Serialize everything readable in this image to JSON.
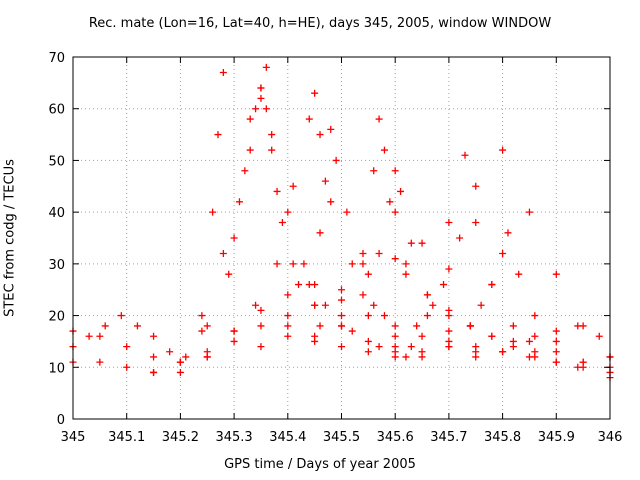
{
  "chart_data": {
    "type": "scatter",
    "title": "Rec. mate (Lon=16, Lat=40, h=HE), days 345, 2005, window WINDOW",
    "xlabel": "GPS time / Days of year 2005",
    "ylabel": "STEC from codg / TECUs",
    "xlim": [
      345,
      346
    ],
    "ylim": [
      0,
      70
    ],
    "x_ticks": [
      "345",
      "345.1",
      "345.2",
      "345.3",
      "345.4",
      "345.5",
      "345.6",
      "345.7",
      "345.8",
      "345.9",
      "346"
    ],
    "y_ticks": [
      "0",
      "10",
      "20",
      "30",
      "40",
      "50",
      "60",
      "70"
    ],
    "grid": true,
    "marker": "plus",
    "color": "#ff0000",
    "series": [
      {
        "x": [
          345.0,
          345.05,
          345.1,
          345.15,
          345.2,
          345.25,
          345.3,
          345.35,
          345.4,
          345.45,
          345.5,
          345.55,
          345.6,
          345.65,
          345.7,
          345.75,
          345.8,
          345.85,
          345.9,
          345.95,
          346.0
        ],
        "y": [
          11,
          11,
          10,
          9,
          9,
          12,
          15,
          18,
          20,
          22,
          25,
          28,
          31,
          34,
          38,
          45,
          52,
          40,
          28,
          18,
          12
        ]
      },
      {
        "x": [
          345.0,
          345.05,
          345.1,
          345.15,
          345.2,
          345.25,
          345.3,
          345.35,
          345.4,
          345.45,
          345.5,
          345.55,
          345.6,
          345.65,
          345.7,
          345.75,
          345.8,
          345.85,
          345.9,
          345.95,
          346.0
        ],
        "y": [
          17,
          16,
          14,
          12,
          11,
          13,
          17,
          21,
          24,
          26,
          23,
          20,
          18,
          16,
          15,
          14,
          13,
          12,
          11,
          10,
          9
        ]
      },
      {
        "x": [
          345.0,
          345.03,
          345.06,
          345.09,
          345.12,
          345.15,
          345.18,
          345.21,
          345.24,
          345.26,
          345.27,
          345.28
        ],
        "y": [
          14,
          16,
          18,
          20,
          18,
          16,
          13,
          12,
          20,
          40,
          55,
          67
        ]
      },
      {
        "x": [
          345.2,
          345.24,
          345.28,
          345.32,
          345.34,
          345.35,
          345.36,
          345.38,
          345.41,
          345.45,
          345.5,
          345.55,
          345.6
        ],
        "y": [
          11,
          17,
          32,
          48,
          60,
          64,
          60,
          44,
          30,
          22,
          18,
          15,
          13
        ]
      },
      {
        "x": [
          345.15,
          345.2,
          345.25,
          345.3,
          345.33,
          345.35,
          345.36,
          345.37,
          345.39,
          345.42,
          345.46,
          345.5
        ],
        "y": [
          9,
          11,
          18,
          35,
          52,
          62,
          68,
          55,
          38,
          26,
          18,
          14
        ]
      },
      {
        "x": [
          345.25,
          345.29,
          345.31,
          345.33,
          345.35,
          345.37,
          345.4,
          345.43,
          345.47,
          345.52,
          345.57,
          345.62
        ],
        "y": [
          12,
          28,
          42,
          58,
          64,
          52,
          40,
          30,
          22,
          17,
          14,
          12
        ]
      },
      {
        "x": [
          345.3,
          345.34,
          345.38,
          345.41,
          345.44,
          345.45,
          345.46,
          345.48,
          345.52,
          345.56,
          345.6,
          345.65
        ],
        "y": [
          17,
          22,
          30,
          45,
          58,
          63,
          55,
          42,
          30,
          22,
          16,
          13
        ]
      },
      {
        "x": [
          345.35,
          345.4,
          345.44,
          345.46,
          345.47,
          345.48,
          345.49,
          345.51,
          345.54,
          345.58,
          345.63
        ],
        "y": [
          14,
          18,
          26,
          36,
          46,
          56,
          50,
          40,
          30,
          20,
          14
        ]
      },
      {
        "x": [
          345.4,
          345.45,
          345.5,
          345.54,
          345.56,
          345.57,
          345.58,
          345.6,
          345.62,
          345.66,
          345.7
        ],
        "y": [
          16,
          16,
          20,
          32,
          48,
          58,
          52,
          40,
          30,
          20,
          14
        ]
      },
      {
        "x": [
          345.45,
          345.5,
          345.54,
          345.57,
          345.59,
          345.6,
          345.61,
          345.63,
          345.66,
          345.7,
          345.75
        ],
        "y": [
          15,
          18,
          24,
          32,
          42,
          48,
          44,
          34,
          24,
          17,
          13
        ]
      },
      {
        "x": [
          345.55,
          345.6,
          345.64,
          345.67,
          345.69,
          345.7,
          345.72,
          345.73,
          345.75,
          345.78,
          345.82,
          345.86
        ],
        "y": [
          13,
          14,
          18,
          22,
          26,
          29,
          35,
          51,
          38,
          26,
          18,
          13
        ]
      },
      {
        "x": [
          345.6,
          345.65,
          345.7,
          345.74,
          345.76,
          345.78,
          345.8,
          345.81,
          345.83,
          345.86,
          345.9,
          345.95
        ],
        "y": [
          12,
          12,
          14,
          18,
          22,
          26,
          32,
          36,
          28,
          20,
          15,
          11
        ]
      },
      {
        "x": [
          345.62,
          345.66,
          345.7,
          345.74,
          345.78,
          345.82,
          345.86,
          345.9,
          345.94,
          346.0
        ],
        "y": [
          28,
          24,
          21,
          18,
          16,
          14,
          12,
          11,
          10,
          8
        ]
      },
      {
        "x": [
          345.7,
          345.74,
          345.78,
          345.82,
          345.86,
          345.9,
          345.94,
          345.98,
          346.0
        ],
        "y": [
          20,
          18,
          16,
          15,
          16,
          17,
          18,
          16,
          12
        ]
      },
      {
        "x": [
          345.75,
          345.8,
          345.85,
          345.9,
          345.95,
          346.0
        ],
        "y": [
          12,
          13,
          15,
          13,
          11,
          10
        ]
      }
    ]
  }
}
